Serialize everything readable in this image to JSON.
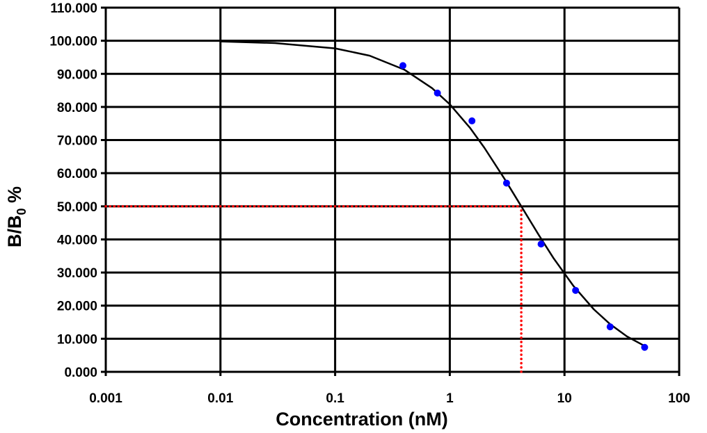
{
  "chart_data": {
    "type": "scatter",
    "xlabel": "Concentration (nM)",
    "ylabel_main": "B/B",
    "ylabel_sub": "0",
    "ylabel_suffix": " %",
    "x_scale": "log",
    "xlim": [
      0.001,
      100
    ],
    "ylim": [
      0,
      110
    ],
    "grid": true,
    "x_ticks": [
      "0.001",
      "0.01",
      "0.1",
      "1",
      "10",
      "100"
    ],
    "y_ticks": [
      "0.000",
      "10.000",
      "20.000",
      "30.000",
      "40.000",
      "50.000",
      "60.000",
      "70.000",
      "80.000",
      "90.000",
      "100.000",
      "110.000"
    ],
    "points": {
      "color": "#0000ff",
      "x": [
        0.39,
        0.78,
        1.56,
        3.125,
        6.25,
        12.5,
        25,
        50
      ],
      "y": [
        92.5,
        84.2,
        75.8,
        57.0,
        38.6,
        24.6,
        13.6,
        7.4
      ]
    },
    "fit_curve": {
      "color": "#000000",
      "x": [
        0.01,
        0.03,
        0.1,
        0.2,
        0.4,
        0.7,
        1,
        1.5,
        2,
        3,
        4.2,
        6,
        8,
        12,
        18,
        25,
        35,
        50
      ],
      "y": [
        99.8,
        99.3,
        97.7,
        95.5,
        91.3,
        85.7,
        80.8,
        73.7,
        67.7,
        58.3,
        50,
        41.2,
        34.4,
        25.9,
        18.9,
        14.4,
        10.7,
        7.8
      ]
    },
    "ic50_guide": {
      "color": "#ff0000",
      "x": 4.2,
      "y": 50
    }
  }
}
